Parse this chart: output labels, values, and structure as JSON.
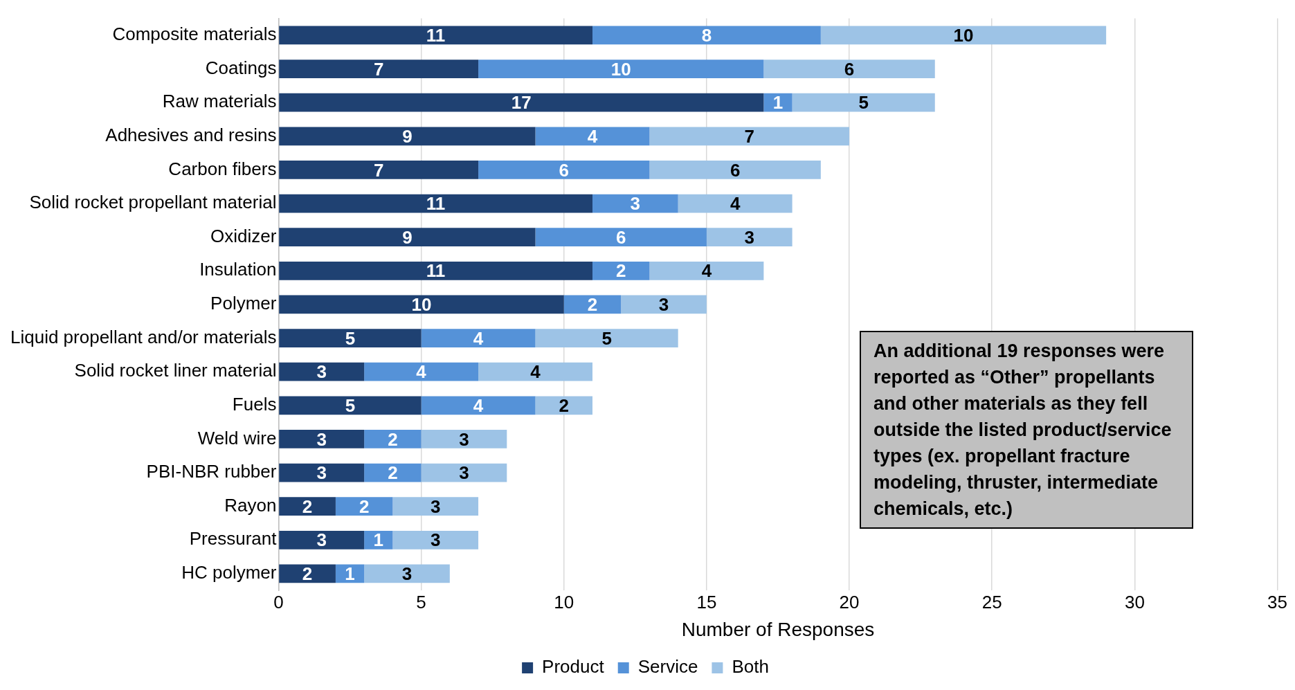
{
  "chart_data": {
    "type": "bar",
    "orientation": "horizontal",
    "stacked": true,
    "xlabel": "Number of Responses",
    "categories": [
      "Composite materials",
      "Coatings",
      "Raw materials",
      "Adhesives and resins",
      "Carbon fibers",
      "Solid rocket propellant material",
      "Oxidizer",
      "Insulation",
      "Polymer",
      "Liquid propellant and/or materials",
      "Solid rocket liner material",
      "Fuels",
      "Weld wire",
      "PBI-NBR rubber",
      "Rayon",
      "Pressurant",
      "HC polymer"
    ],
    "series": [
      {
        "name": "Product",
        "color": "#1f4172",
        "values": [
          11,
          7,
          17,
          9,
          7,
          11,
          9,
          11,
          10,
          5,
          3,
          5,
          3,
          3,
          2,
          3,
          2
        ]
      },
      {
        "name": "Service",
        "color": "#5592d8",
        "values": [
          8,
          10,
          1,
          4,
          6,
          3,
          6,
          2,
          2,
          4,
          4,
          4,
          2,
          2,
          2,
          1,
          1
        ]
      },
      {
        "name": "Both",
        "color": "#9dc3e6",
        "values": [
          10,
          6,
          5,
          7,
          6,
          4,
          3,
          4,
          3,
          5,
          4,
          2,
          3,
          3,
          3,
          3,
          3
        ]
      }
    ],
    "xlim": [
      0,
      35
    ],
    "xticks": [
      0,
      5,
      10,
      15,
      20,
      25,
      30,
      35
    ],
    "grid": "x",
    "legend": "bottom",
    "data_labels": true,
    "annotations": [
      "An additional 19 responses were reported as “Other” propellants and other materials as they fell outside the listed product/service types (ex. propellant fracture modeling, thruster, intermediate chemicals, etc.)"
    ]
  }
}
